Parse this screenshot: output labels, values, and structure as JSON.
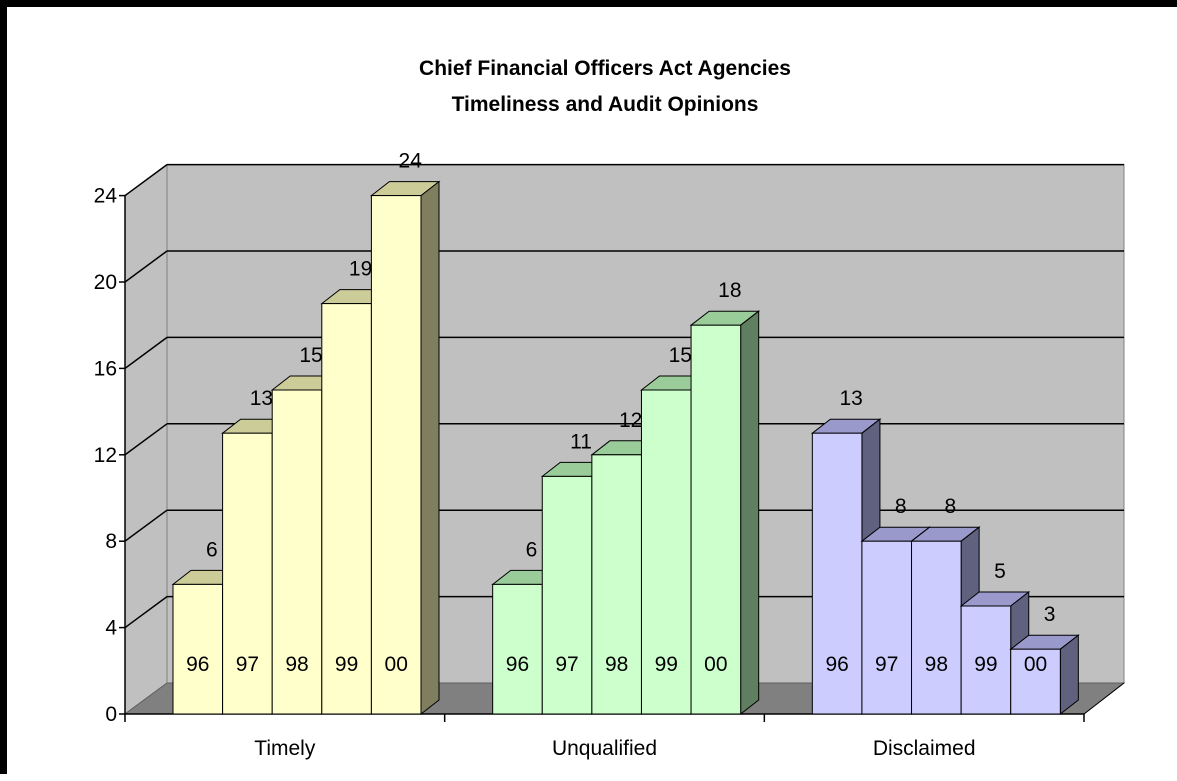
{
  "chart_data": {
    "type": "bar",
    "title": "Chief Financial Officers Act Agencies",
    "subtitle": "Timeliness and Audit Opinions",
    "xlabel": "",
    "ylabel": "",
    "ylim": [
      0,
      24
    ],
    "yticks": [
      0,
      4,
      8,
      12,
      16,
      20,
      24
    ],
    "grid": true,
    "categories": [
      "Timely",
      "Unqualified",
      "Disclaimed"
    ],
    "series": [
      {
        "name": "96",
        "values": [
          6,
          6,
          13
        ]
      },
      {
        "name": "97",
        "values": [
          13,
          11,
          8
        ]
      },
      {
        "name": "98",
        "values": [
          15,
          12,
          8
        ]
      },
      {
        "name": "99",
        "values": [
          19,
          15,
          5
        ]
      },
      {
        "name": "00",
        "values": [
          24,
          18,
          3
        ]
      }
    ],
    "category_colors": [
      {
        "front": "#ffffcc",
        "top": "#cccc99",
        "side": "#7f7f60"
      },
      {
        "front": "#ccffcc",
        "top": "#99cc99",
        "side": "#607f60"
      },
      {
        "front": "#ccccff",
        "top": "#9999cc",
        "side": "#60607f"
      }
    ],
    "wall_color": "#c0c0c0",
    "floor_color": "#808080"
  }
}
